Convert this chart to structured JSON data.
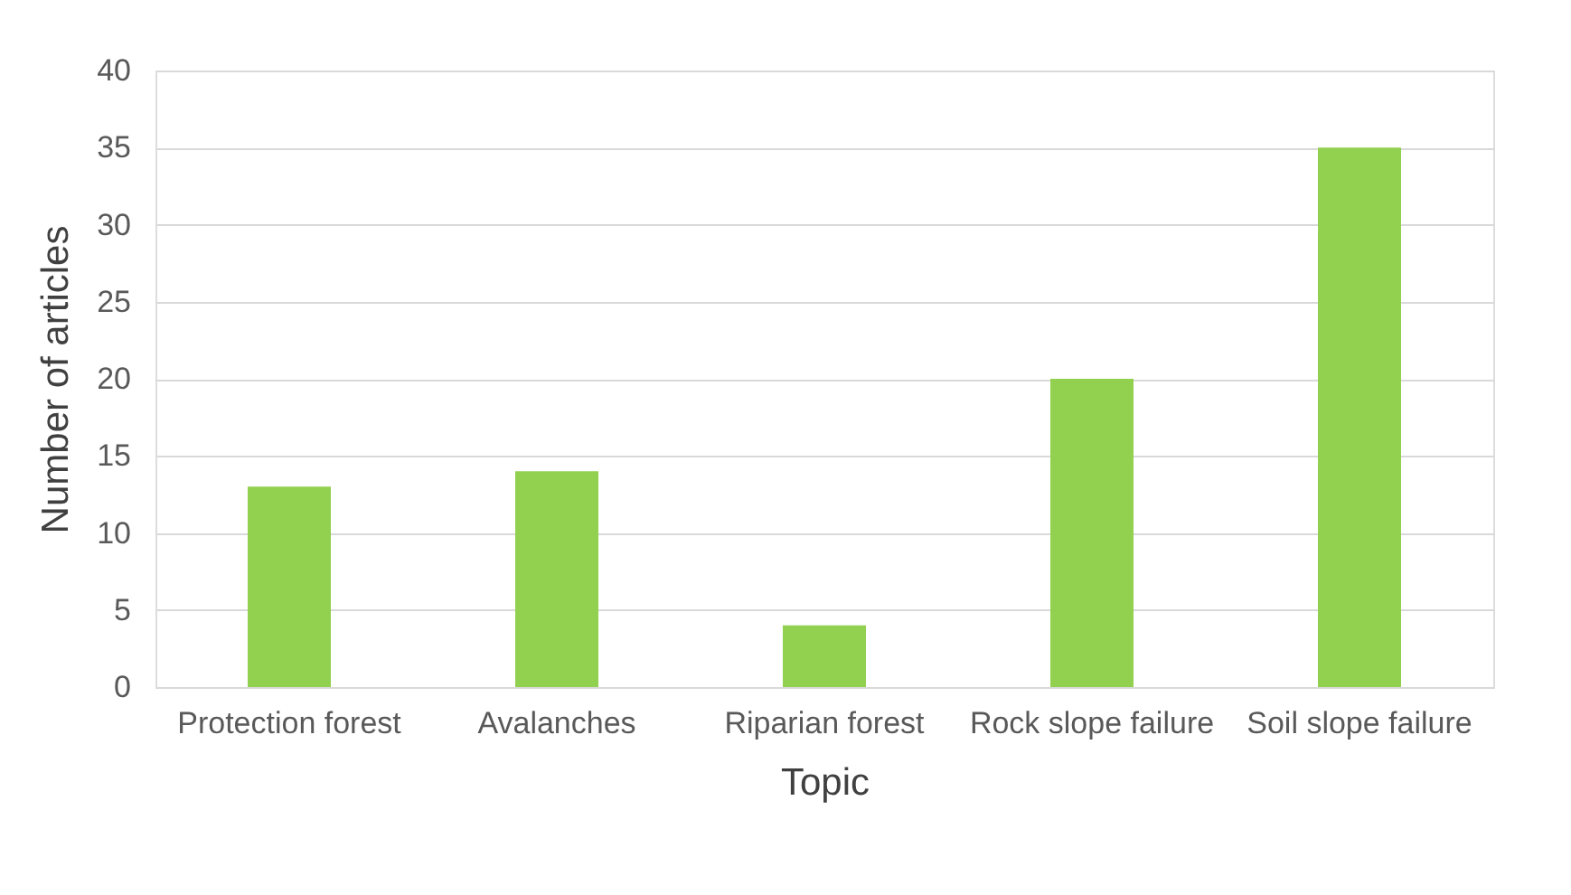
{
  "chart_data": {
    "type": "bar",
    "xlabel": "Topic",
    "ylabel": "Number of articles",
    "categories": [
      "Protection forest",
      "Avalanches",
      "Riparian forest",
      "Rock slope failure",
      "Soil slope failure"
    ],
    "values": [
      13,
      14,
      4,
      20,
      35
    ],
    "color": "#92d050",
    "ylim": [
      0,
      40
    ],
    "yticks": [
      0,
      5,
      10,
      15,
      20,
      25,
      30,
      35,
      40
    ],
    "grid": "y"
  }
}
